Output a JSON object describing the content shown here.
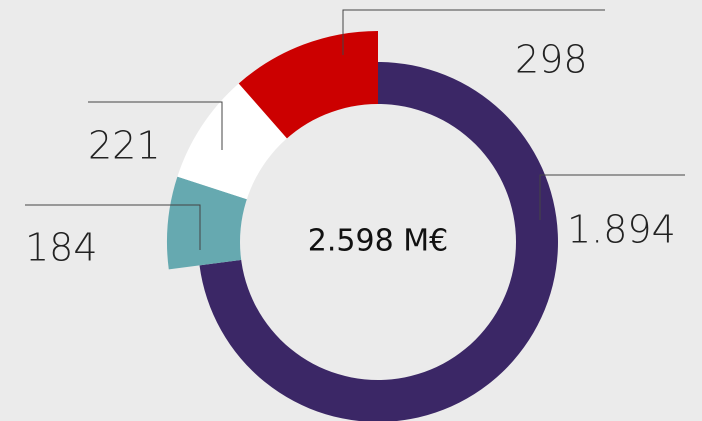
{
  "chart_data": {
    "type": "donut",
    "center_label": "2.598 M€",
    "values": [
      1894,
      184,
      221,
      298
    ],
    "value_labels": [
      "1.894",
      "184",
      "221",
      "298"
    ],
    "colors": [
      "#3b2766",
      "#66a9b0",
      "#ffffff",
      "#cc0000"
    ]
  }
}
